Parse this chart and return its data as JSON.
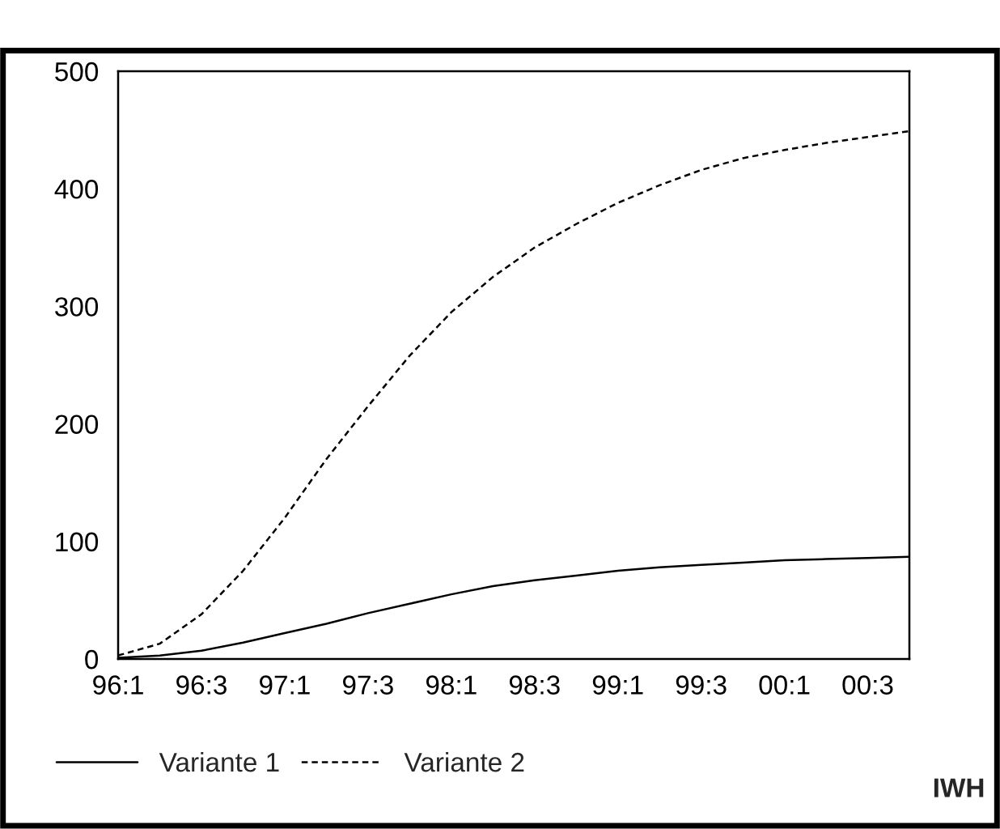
{
  "chart_data": {
    "type": "line",
    "categories": [
      "96:1",
      null,
      "96:3",
      null,
      "97:1",
      null,
      "97:3",
      null,
      "98:1",
      null,
      "98:3",
      null,
      "99:1",
      null,
      "99:3",
      null,
      "00:1",
      null,
      "00:3",
      null
    ],
    "series": [
      {
        "name": "Variante 1",
        "color": "#000000",
        "line_style": "solid",
        "values": [
          1,
          3,
          7,
          14,
          22,
          30,
          39,
          47,
          55,
          62,
          67,
          71,
          75,
          78,
          80,
          82,
          84,
          85,
          86,
          87
        ]
      },
      {
        "name": "Variante 2",
        "color": "#000000",
        "line_style": "dashed",
        "values": [
          3,
          13,
          38,
          75,
          120,
          170,
          215,
          258,
          295,
          325,
          350,
          370,
          388,
          403,
          416,
          426,
          433,
          439,
          444,
          449
        ]
      }
    ],
    "ylim": [
      0,
      500
    ],
    "yticks": [
      0,
      100,
      200,
      300,
      400,
      500
    ],
    "grid": false,
    "legend": "bottom left",
    "annotations": [
      "IWH"
    ]
  }
}
